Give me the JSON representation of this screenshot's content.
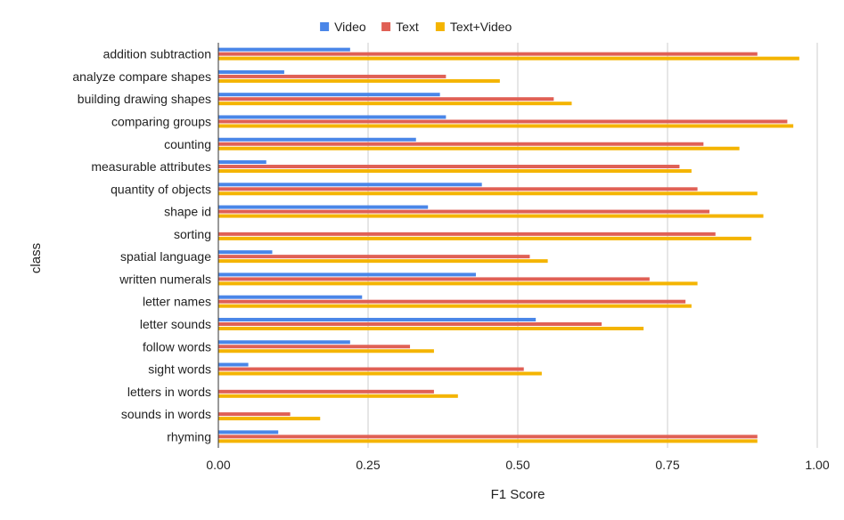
{
  "chart_data": {
    "type": "bar",
    "orientation": "horizontal",
    "xlabel": "F1 Score",
    "ylabel": "class",
    "xlim": [
      0,
      1
    ],
    "xticks": [
      "0.00",
      "0.25",
      "0.50",
      "0.75",
      "1.00"
    ],
    "xtick_values": [
      0,
      0.25,
      0.5,
      0.75,
      1.0
    ],
    "grid": "vertical",
    "legend_position": "top-center",
    "categories": [
      "addition subtraction",
      "analyze compare shapes",
      "building drawing shapes",
      "comparing groups",
      "counting",
      "measurable attributes",
      "quantity of objects",
      "shape id",
      "sorting",
      "spatial language",
      "written numerals",
      "letter names",
      "letter sounds",
      "follow words",
      "sight words",
      "letters in words",
      "sounds in words",
      "rhyming"
    ],
    "series": [
      {
        "name": "Video",
        "color": "#4a86e8",
        "values": [
          0.22,
          0.11,
          0.37,
          0.38,
          0.33,
          0.08,
          0.44,
          0.35,
          0.0,
          0.09,
          0.43,
          0.24,
          0.53,
          0.22,
          0.05,
          0.0,
          0.0,
          0.1
        ]
      },
      {
        "name": "Text",
        "color": "#e06055",
        "values": [
          0.9,
          0.38,
          0.56,
          0.95,
          0.81,
          0.77,
          0.8,
          0.82,
          0.83,
          0.52,
          0.72,
          0.78,
          0.64,
          0.32,
          0.51,
          0.36,
          0.12,
          0.9
        ]
      },
      {
        "name": "Text+Video",
        "color": "#f4b400",
        "values": [
          0.97,
          0.47,
          0.59,
          0.96,
          0.87,
          0.79,
          0.9,
          0.91,
          0.89,
          0.55,
          0.8,
          0.79,
          0.71,
          0.36,
          0.54,
          0.4,
          0.17,
          0.9
        ]
      }
    ]
  }
}
